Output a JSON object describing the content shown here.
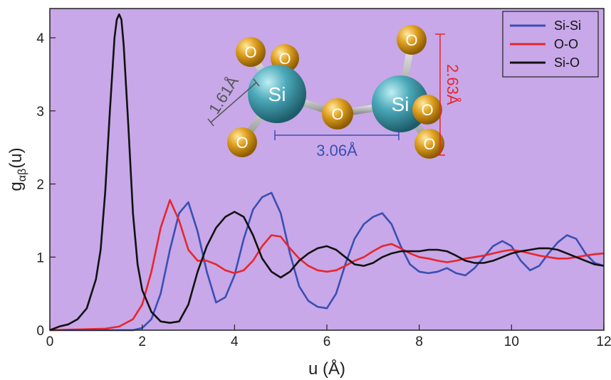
{
  "chart_data": {
    "type": "line",
    "title": "",
    "xlabel": "u (Å)",
    "ylabel": "g",
    "ylabel_subscript": "αβ",
    "ylabel_suffix": "(u)",
    "xlim": [
      0,
      12
    ],
    "ylim": [
      0,
      4.4
    ],
    "xticks": [
      "0",
      "2",
      "4",
      "6",
      "8",
      "10",
      "12"
    ],
    "yticks": [
      "0",
      "1",
      "2",
      "3",
      "4"
    ],
    "background": "#c8a8e8",
    "grid": false,
    "legend_position": "top-right",
    "series": [
      {
        "name": "Si-Si",
        "color": "#3a4fb4",
        "x": [
          0,
          1.8,
          2.0,
          2.2,
          2.4,
          2.6,
          2.8,
          3.0,
          3.2,
          3.4,
          3.6,
          3.8,
          4.0,
          4.2,
          4.4,
          4.6,
          4.8,
          5.0,
          5.2,
          5.4,
          5.6,
          5.8,
          6.0,
          6.2,
          6.4,
          6.6,
          6.8,
          7.0,
          7.2,
          7.4,
          7.6,
          7.8,
          8.0,
          8.2,
          8.4,
          8.6,
          8.8,
          9.0,
          9.2,
          9.4,
          9.6,
          9.8,
          10.0,
          10.2,
          10.4,
          10.6,
          10.8,
          11.0,
          11.2,
          11.4,
          11.6,
          11.8,
          12.0
        ],
        "y": [
          0,
          0,
          0.03,
          0.15,
          0.5,
          1.1,
          1.6,
          1.75,
          1.35,
          0.8,
          0.38,
          0.45,
          0.75,
          1.25,
          1.65,
          1.82,
          1.88,
          1.6,
          1.05,
          0.6,
          0.4,
          0.32,
          0.3,
          0.5,
          0.9,
          1.25,
          1.45,
          1.55,
          1.6,
          1.45,
          1.15,
          0.9,
          0.8,
          0.78,
          0.8,
          0.85,
          0.78,
          0.75,
          0.85,
          1.0,
          1.15,
          1.22,
          1.15,
          0.95,
          0.82,
          0.88,
          1.05,
          1.2,
          1.3,
          1.25,
          1.05,
          0.92,
          0.88
        ]
      },
      {
        "name": "O-O",
        "color": "#e8262c",
        "x": [
          0,
          1.2,
          1.5,
          1.8,
          2.0,
          2.2,
          2.4,
          2.6,
          2.8,
          3.0,
          3.2,
          3.4,
          3.6,
          3.8,
          4.0,
          4.2,
          4.4,
          4.6,
          4.8,
          5.0,
          5.2,
          5.4,
          5.6,
          5.8,
          6.0,
          6.2,
          6.4,
          6.6,
          6.8,
          7.0,
          7.2,
          7.4,
          7.6,
          7.8,
          8.0,
          8.2,
          8.4,
          8.6,
          8.8,
          9.0,
          9.2,
          9.4,
          9.6,
          9.8,
          10.0,
          10.2,
          10.4,
          10.6,
          10.8,
          11.0,
          11.2,
          11.4,
          11.6,
          11.8,
          12.0
        ],
        "y": [
          0,
          0.02,
          0.05,
          0.15,
          0.35,
          0.8,
          1.4,
          1.78,
          1.5,
          1.1,
          0.95,
          0.95,
          0.9,
          0.82,
          0.78,
          0.82,
          0.95,
          1.15,
          1.3,
          1.28,
          1.12,
          0.98,
          0.88,
          0.82,
          0.8,
          0.82,
          0.88,
          0.95,
          1.0,
          1.08,
          1.15,
          1.18,
          1.12,
          1.05,
          1.0,
          0.98,
          0.95,
          0.93,
          0.95,
          0.98,
          1.0,
          1.02,
          1.05,
          1.08,
          1.1,
          1.08,
          1.05,
          1.02,
          1.0,
          0.98,
          0.98,
          1.0,
          1.02,
          1.04,
          1.05
        ]
      },
      {
        "name": "Si-O",
        "color": "#111111",
        "x": [
          0,
          0.2,
          0.4,
          0.6,
          0.8,
          1.0,
          1.1,
          1.2,
          1.3,
          1.4,
          1.45,
          1.5,
          1.55,
          1.6,
          1.7,
          1.8,
          1.9,
          2.0,
          2.2,
          2.4,
          2.6,
          2.8,
          3.0,
          3.2,
          3.4,
          3.6,
          3.8,
          4.0,
          4.2,
          4.4,
          4.6,
          4.8,
          5.0,
          5.2,
          5.4,
          5.6,
          5.8,
          6.0,
          6.2,
          6.4,
          6.6,
          6.8,
          7.0,
          7.2,
          7.4,
          7.6,
          7.8,
          8.0,
          8.2,
          8.4,
          8.6,
          8.8,
          9.0,
          9.2,
          9.4,
          9.6,
          9.8,
          10.0,
          10.2,
          10.4,
          10.6,
          10.8,
          11.0,
          11.2,
          11.4,
          11.6,
          11.8,
          12.0
        ],
        "y": [
          0,
          0.05,
          0.08,
          0.15,
          0.3,
          0.7,
          1.1,
          1.9,
          3.0,
          4.0,
          4.25,
          4.32,
          4.25,
          3.9,
          2.8,
          1.6,
          0.9,
          0.55,
          0.25,
          0.12,
          0.1,
          0.12,
          0.35,
          0.8,
          1.15,
          1.4,
          1.55,
          1.62,
          1.55,
          1.3,
          0.98,
          0.8,
          0.72,
          0.8,
          0.95,
          1.05,
          1.12,
          1.15,
          1.1,
          1.0,
          0.9,
          0.88,
          0.92,
          1.0,
          1.05,
          1.08,
          1.08,
          1.08,
          1.1,
          1.1,
          1.08,
          1.02,
          0.95,
          0.92,
          0.92,
          0.95,
          1.0,
          1.05,
          1.08,
          1.1,
          1.12,
          1.12,
          1.1,
          1.05,
          1.0,
          0.95,
          0.9,
          0.88
        ]
      }
    ],
    "inset": {
      "atom_labels": [
        "Si",
        "Si",
        "O",
        "O",
        "O",
        "O",
        "O",
        "O",
        "O"
      ],
      "si_o_bond": "1.61Å",
      "si_si_distance": "3.06Å",
      "o_o_distance": "2.63Å",
      "si_color": "#4aa8b8",
      "o_color": "#e0a020",
      "si_o_label_color": "#555555",
      "si_si_label_color": "#3a4fb4",
      "o_o_label_color": "#e8262c"
    }
  }
}
